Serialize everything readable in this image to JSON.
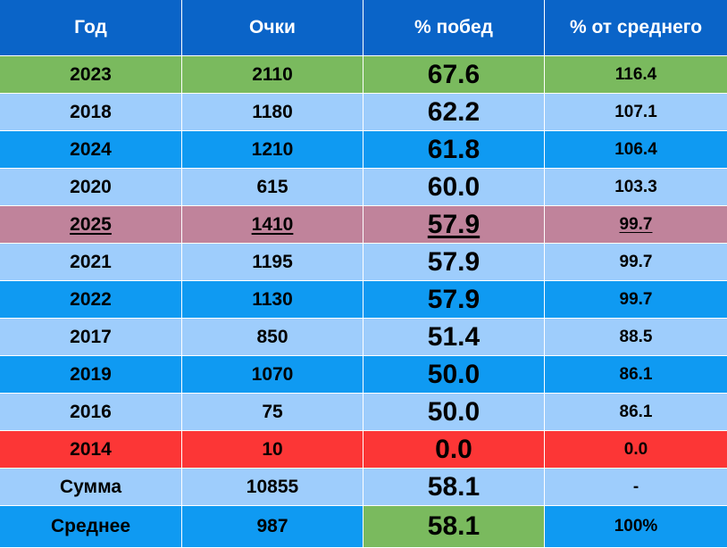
{
  "headers": [
    "Год",
    "Очки",
    "% побед",
    "% от среднего"
  ],
  "rows": [
    {
      "year": "2023",
      "points": "2110",
      "win_pct": "67.6",
      "pct_of_avg": "116.4",
      "bg": "#7aba5e",
      "underline": false
    },
    {
      "year": "2018",
      "points": "1180",
      "win_pct": "62.2",
      "pct_of_avg": "107.1",
      "bg": "#9ecdfc",
      "underline": false
    },
    {
      "year": "2024",
      "points": "1210",
      "win_pct": "61.8",
      "pct_of_avg": "106.4",
      "bg": "#0f9af2",
      "underline": false
    },
    {
      "year": "2020",
      "points": "615",
      "win_pct": "60.0",
      "pct_of_avg": "103.3",
      "bg": "#9ecdfc",
      "underline": false
    },
    {
      "year": "2025",
      "points": "1410",
      "win_pct": "57.9",
      "pct_of_avg": "99.7",
      "bg": "#c0839b",
      "underline": true
    },
    {
      "year": "2021",
      "points": "1195",
      "win_pct": "57.9",
      "pct_of_avg": "99.7",
      "bg": "#9ecdfc",
      "underline": false
    },
    {
      "year": "2022",
      "points": "1130",
      "win_pct": "57.9",
      "pct_of_avg": "99.7",
      "bg": "#0f9af2",
      "underline": false
    },
    {
      "year": "2017",
      "points": "850",
      "win_pct": "51.4",
      "pct_of_avg": "88.5",
      "bg": "#9ecdfc",
      "underline": false
    },
    {
      "year": "2019",
      "points": "1070",
      "win_pct": "50.0",
      "pct_of_avg": "86.1",
      "bg": "#0f9af2",
      "underline": false
    },
    {
      "year": "2016",
      "points": "75",
      "win_pct": "50.0",
      "pct_of_avg": "86.1",
      "bg": "#9ecdfc",
      "underline": false
    },
    {
      "year": "2014",
      "points": "10",
      "win_pct": "0.0",
      "pct_of_avg": "0.0",
      "bg": "#fc3636",
      "underline": false
    }
  ],
  "summary": [
    {
      "label": "Сумма",
      "points": "10855",
      "win_pct": "58.1",
      "pct_of_avg": "-",
      "bg": "#9ecdfc",
      "win_bg": "#9ecdfc"
    },
    {
      "label": "Среднее",
      "points": "987",
      "win_pct": "58.1",
      "pct_of_avg": "100%",
      "bg": "#0f9af2",
      "win_bg": "#7aba5e"
    }
  ]
}
